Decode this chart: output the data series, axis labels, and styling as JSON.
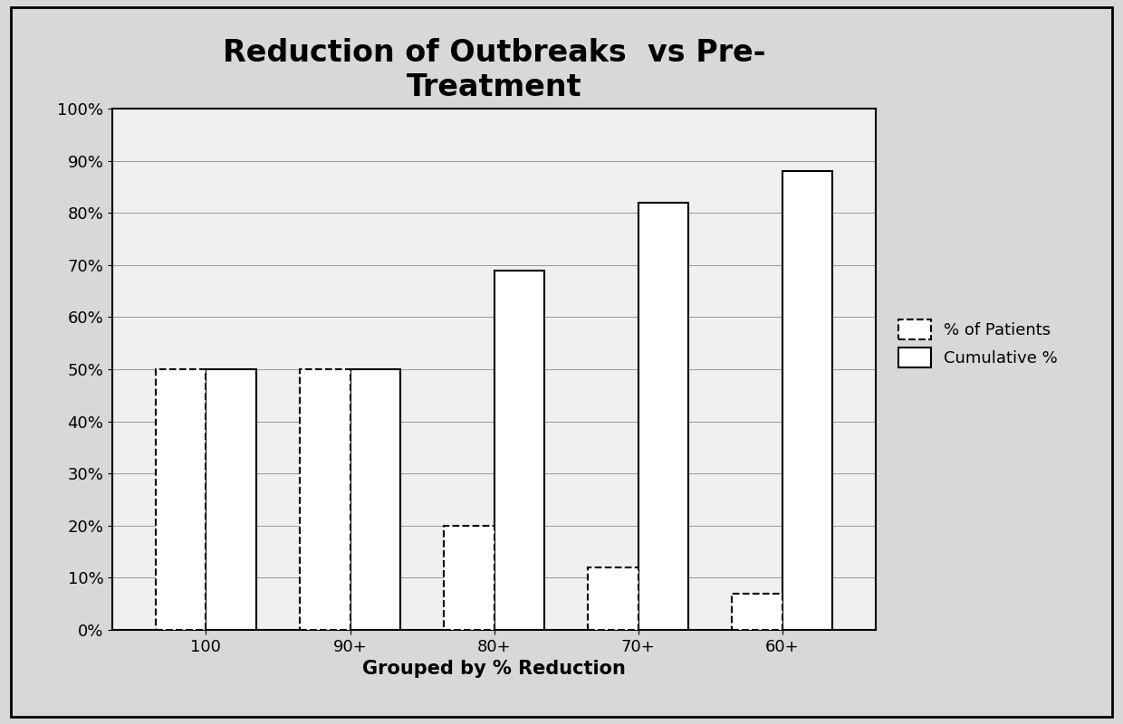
{
  "categories": [
    "100",
    "90+",
    "80+",
    "70+",
    "60+"
  ],
  "pct_patients": [
    50,
    50,
    20,
    12,
    7
  ],
  "cumulative_pct": [
    50,
    50,
    69,
    82,
    88
  ],
  "title_line1": "Reduction of Outbreaks  vs Pre-",
  "title_line2": "Treatment",
  "xlabel": "Grouped by % Reduction",
  "ylabel": "",
  "yticks": [
    0,
    10,
    20,
    30,
    40,
    50,
    60,
    70,
    80,
    90,
    100
  ],
  "ytick_labels": [
    "0%",
    "10%",
    "20%",
    "30%",
    "40%",
    "50%",
    "60%",
    "70%",
    "80%",
    "90%",
    "100%"
  ],
  "legend_patients": "% of Patients",
  "legend_cumulative": "Cumulative %",
  "bar_width": 0.35,
  "background_color": "#f0f0f0",
  "bar_color_patients": "#ffffff",
  "bar_color_cumulative": "#ffffff",
  "bar_edge_color": "#000000",
  "title_fontsize": 24,
  "label_fontsize": 15,
  "tick_fontsize": 13,
  "legend_fontsize": 13,
  "grid_color": "#888888",
  "grid_linewidth": 0.6
}
